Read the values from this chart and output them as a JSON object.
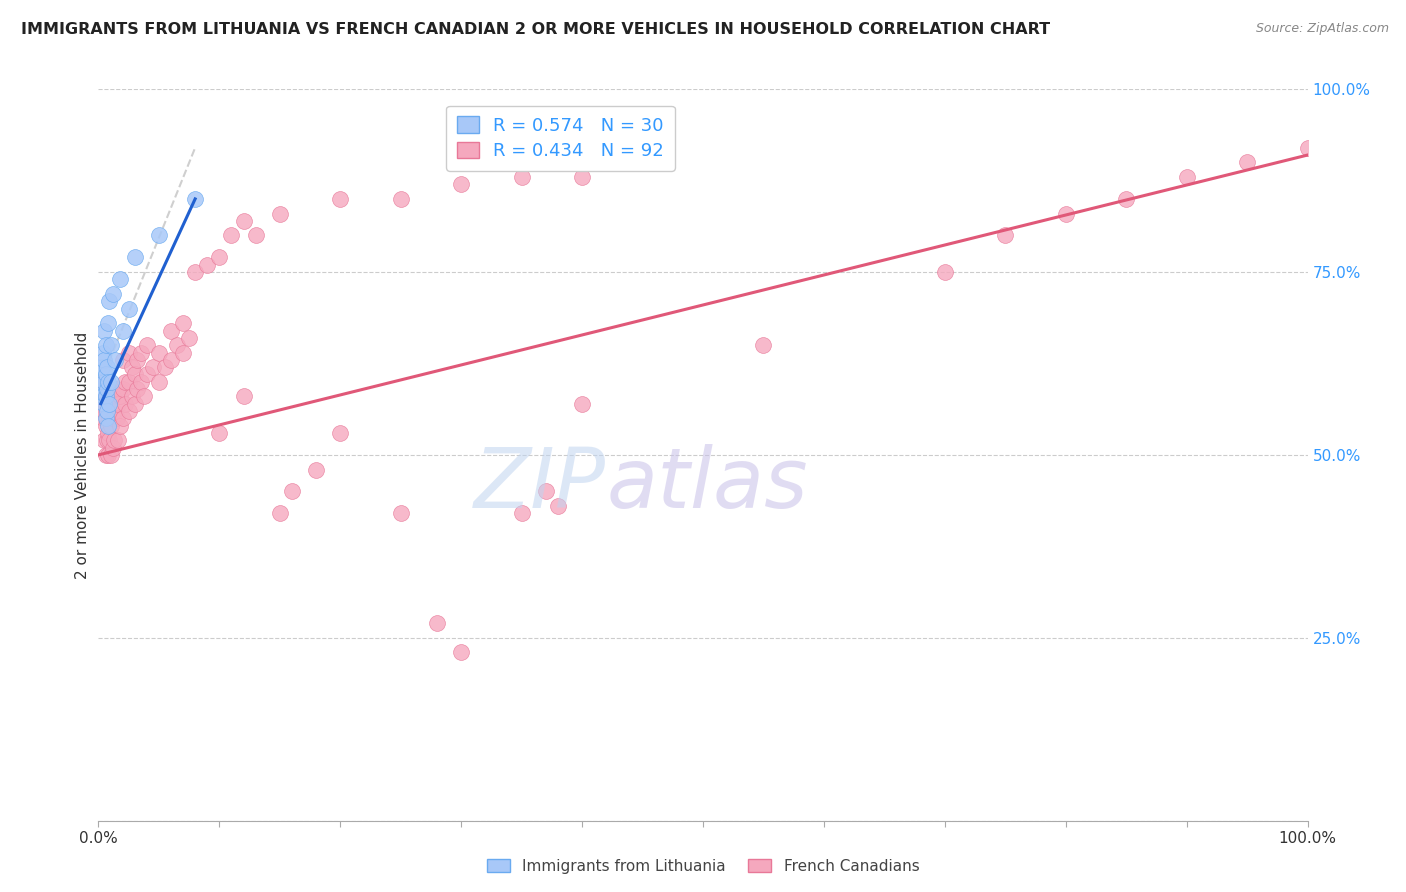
{
  "title": "IMMIGRANTS FROM LITHUANIA VS FRENCH CANADIAN 2 OR MORE VEHICLES IN HOUSEHOLD CORRELATION CHART",
  "source": "Source: ZipAtlas.com",
  "ylabel": "2 or more Vehicles in Household",
  "xlim": [
    0.0,
    1.0
  ],
  "ylim": [
    0.0,
    1.0
  ],
  "blue_color_fill": "#a8c8f8",
  "blue_color_edge": "#6aaaf0",
  "pink_color_fill": "#f5a8be",
  "pink_color_edge": "#e87898",
  "blue_line_color": "#2060d0",
  "pink_line_color": "#e05878",
  "dash_line_color": "#bbbbbb",
  "grid_color": "#cccccc",
  "right_tick_color": "#3399ff",
  "watermark_zip_color": "#c0d4f0",
  "watermark_atlas_color": "#c8c0e8",
  "blue_points": [
    [
      0.002,
      0.6
    ],
    [
      0.003,
      0.62
    ],
    [
      0.004,
      0.58
    ],
    [
      0.004,
      0.64
    ],
    [
      0.005,
      0.57
    ],
    [
      0.005,
      0.6
    ],
    [
      0.005,
      0.63
    ],
    [
      0.005,
      0.67
    ],
    [
      0.006,
      0.55
    ],
    [
      0.006,
      0.58
    ],
    [
      0.006,
      0.61
    ],
    [
      0.006,
      0.65
    ],
    [
      0.007,
      0.56
    ],
    [
      0.007,
      0.59
    ],
    [
      0.007,
      0.62
    ],
    [
      0.008,
      0.54
    ],
    [
      0.008,
      0.6
    ],
    [
      0.008,
      0.68
    ],
    [
      0.009,
      0.57
    ],
    [
      0.009,
      0.71
    ],
    [
      0.01,
      0.6
    ],
    [
      0.01,
      0.65
    ],
    [
      0.012,
      0.72
    ],
    [
      0.014,
      0.63
    ],
    [
      0.018,
      0.74
    ],
    [
      0.02,
      0.67
    ],
    [
      0.025,
      0.7
    ],
    [
      0.03,
      0.77
    ],
    [
      0.05,
      0.8
    ],
    [
      0.08,
      0.85
    ]
  ],
  "pink_points": [
    [
      0.003,
      0.57
    ],
    [
      0.004,
      0.55
    ],
    [
      0.004,
      0.6
    ],
    [
      0.005,
      0.52
    ],
    [
      0.005,
      0.56
    ],
    [
      0.005,
      0.6
    ],
    [
      0.006,
      0.5
    ],
    [
      0.006,
      0.54
    ],
    [
      0.006,
      0.58
    ],
    [
      0.007,
      0.52
    ],
    [
      0.007,
      0.55
    ],
    [
      0.007,
      0.58
    ],
    [
      0.008,
      0.5
    ],
    [
      0.008,
      0.53
    ],
    [
      0.008,
      0.57
    ],
    [
      0.009,
      0.52
    ],
    [
      0.009,
      0.55
    ],
    [
      0.01,
      0.5
    ],
    [
      0.01,
      0.54
    ],
    [
      0.01,
      0.58
    ],
    [
      0.012,
      0.51
    ],
    [
      0.012,
      0.55
    ],
    [
      0.012,
      0.58
    ],
    [
      0.013,
      0.52
    ],
    [
      0.013,
      0.56
    ],
    [
      0.015,
      0.55
    ],
    [
      0.015,
      0.59
    ],
    [
      0.016,
      0.52
    ],
    [
      0.016,
      0.57
    ],
    [
      0.018,
      0.54
    ],
    [
      0.018,
      0.58
    ],
    [
      0.02,
      0.55
    ],
    [
      0.02,
      0.59
    ],
    [
      0.02,
      0.63
    ],
    [
      0.022,
      0.57
    ],
    [
      0.022,
      0.6
    ],
    [
      0.025,
      0.56
    ],
    [
      0.025,
      0.6
    ],
    [
      0.025,
      0.64
    ],
    [
      0.028,
      0.58
    ],
    [
      0.028,
      0.62
    ],
    [
      0.03,
      0.57
    ],
    [
      0.03,
      0.61
    ],
    [
      0.032,
      0.59
    ],
    [
      0.032,
      0.63
    ],
    [
      0.035,
      0.6
    ],
    [
      0.035,
      0.64
    ],
    [
      0.038,
      0.58
    ],
    [
      0.04,
      0.61
    ],
    [
      0.04,
      0.65
    ],
    [
      0.045,
      0.62
    ],
    [
      0.05,
      0.6
    ],
    [
      0.05,
      0.64
    ],
    [
      0.055,
      0.62
    ],
    [
      0.06,
      0.63
    ],
    [
      0.06,
      0.67
    ],
    [
      0.065,
      0.65
    ],
    [
      0.07,
      0.64
    ],
    [
      0.07,
      0.68
    ],
    [
      0.075,
      0.66
    ],
    [
      0.08,
      0.75
    ],
    [
      0.09,
      0.76
    ],
    [
      0.1,
      0.77
    ],
    [
      0.11,
      0.8
    ],
    [
      0.12,
      0.82
    ],
    [
      0.13,
      0.8
    ],
    [
      0.15,
      0.83
    ],
    [
      0.2,
      0.85
    ],
    [
      0.25,
      0.85
    ],
    [
      0.3,
      0.87
    ],
    [
      0.35,
      0.88
    ],
    [
      0.4,
      0.88
    ],
    [
      0.35,
      0.42
    ],
    [
      0.37,
      0.45
    ],
    [
      0.38,
      0.43
    ],
    [
      0.4,
      0.57
    ],
    [
      0.1,
      0.53
    ],
    [
      0.12,
      0.58
    ],
    [
      0.15,
      0.42
    ],
    [
      0.16,
      0.45
    ],
    [
      0.18,
      0.48
    ],
    [
      0.2,
      0.53
    ],
    [
      0.25,
      0.42
    ],
    [
      0.28,
      0.27
    ],
    [
      0.3,
      0.23
    ],
    [
      0.55,
      0.65
    ],
    [
      0.7,
      0.75
    ],
    [
      0.75,
      0.8
    ],
    [
      0.8,
      0.83
    ],
    [
      0.85,
      0.85
    ],
    [
      0.9,
      0.88
    ],
    [
      0.95,
      0.9
    ],
    [
      1.0,
      0.92
    ]
  ],
  "blue_line": [
    [
      0.002,
      0.57
    ],
    [
      0.08,
      0.85
    ]
  ],
  "pink_line": [
    [
      0.0,
      0.5
    ],
    [
      1.0,
      0.91
    ]
  ],
  "dash_line": [
    [
      0.002,
      0.6
    ],
    [
      0.08,
      0.92
    ]
  ]
}
